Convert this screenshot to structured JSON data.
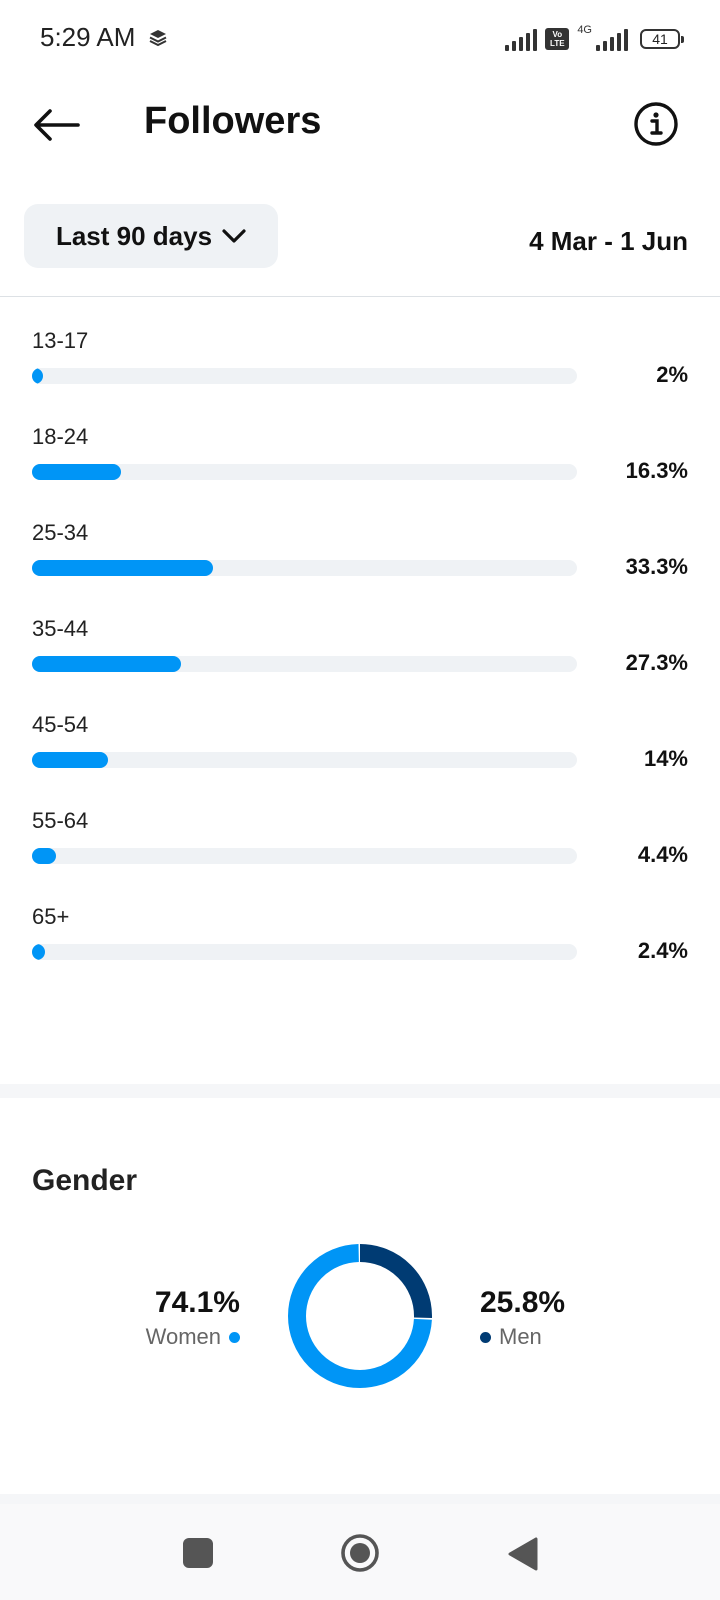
{
  "status_bar": {
    "time": "5:29 AM",
    "network": "4G",
    "volte": "Vo LTE",
    "battery": "41"
  },
  "header": {
    "title": "Followers",
    "back_icon": "arrow-left-icon",
    "info_icon": "info-icon"
  },
  "filter": {
    "range_label": "Last 90 days",
    "date_range": "4 Mar - 1 Jun"
  },
  "age_ranges": [
    {
      "label": "13-17",
      "value_text": "2%",
      "percent": 2
    },
    {
      "label": "18-24",
      "value_text": "16.3%",
      "percent": 16.3
    },
    {
      "label": "25-34",
      "value_text": "33.3%",
      "percent": 33.3
    },
    {
      "label": "35-44",
      "value_text": "27.3%",
      "percent": 27.3
    },
    {
      "label": "45-54",
      "value_text": "14%",
      "percent": 14
    },
    {
      "label": "55-64",
      "value_text": "4.4%",
      "percent": 4.4
    },
    {
      "label": "65+",
      "value_text": "2.4%",
      "percent": 2.4
    }
  ],
  "gender": {
    "title": "Gender",
    "women": {
      "label": "Women",
      "value_text": "74.1%",
      "percent": 74.1,
      "color": "#0095f6"
    },
    "men": {
      "label": "Men",
      "value_text": "25.8%",
      "percent": 25.8,
      "color": "#003b73"
    }
  },
  "nav_bar": {
    "icons": [
      "recent-apps-icon",
      "home-icon",
      "back-icon"
    ]
  },
  "colors": {
    "accent": "#0095f6",
    "dark_accent": "#003b73",
    "track": "#eff2f5"
  }
}
